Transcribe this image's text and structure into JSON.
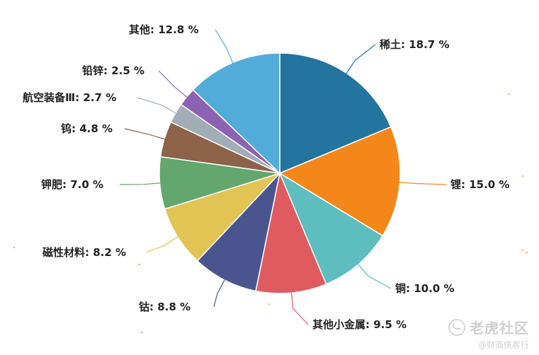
{
  "chart_data": {
    "type": "pie",
    "title": "",
    "slices": [
      {
        "label": "稀土",
        "value": 18.7,
        "display": "稀土: 18.7 %",
        "color": "#23749f"
      },
      {
        "label": "锂",
        "value": 15.0,
        "display": "锂: 15.0 %",
        "color": "#f5871a"
      },
      {
        "label": "铜",
        "value": 10.0,
        "display": "铜: 10.0 %",
        "color": "#5dbdbf"
      },
      {
        "label": "其他小金属",
        "value": 9.5,
        "display": "其他小金属: 9.5 %",
        "color": "#e05b5f"
      },
      {
        "label": "钴",
        "value": 8.8,
        "display": "钴: 8.8 %",
        "color": "#4a5590"
      },
      {
        "label": "磁性材料",
        "value": 8.2,
        "display": "磁性材料: 8.2 %",
        "color": "#e2c455"
      },
      {
        "label": "钾肥",
        "value": 7.0,
        "display": "钾肥: 7.0 %",
        "color": "#63a66e"
      },
      {
        "label": "钨",
        "value": 4.8,
        "display": "钨: 4.8 %",
        "color": "#8c6249"
      },
      {
        "label": "航空装备Ⅲ",
        "value": 2.7,
        "display": "航空装备Ⅲ: 2.7 %",
        "color": "#a2acb6"
      },
      {
        "label": "铅锌",
        "value": 2.5,
        "display": "铅锌: 2.5 %",
        "color": "#8c63b4"
      },
      {
        "label": "其他",
        "value": 12.8,
        "display": "其他: 12.8 %",
        "color": "#52acd9"
      }
    ]
  },
  "watermark": {
    "brand": "老虎社区",
    "sub": "@财商侠客行"
  }
}
